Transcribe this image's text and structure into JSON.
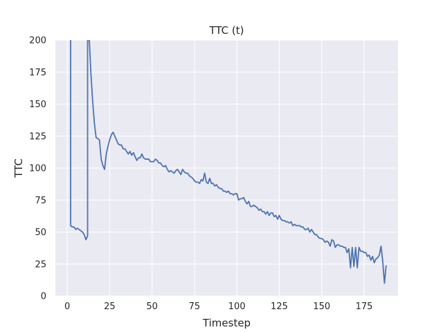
{
  "chart_data": {
    "type": "line",
    "title": "TTC (t)",
    "xlabel": "Timestep",
    "ylabel": "TTC",
    "xlim": [
      -7,
      195
    ],
    "ylim": [
      0,
      200
    ],
    "xticks": [
      0,
      25,
      50,
      75,
      100,
      125,
      150,
      175
    ],
    "yticks": [
      0,
      25,
      50,
      75,
      100,
      125,
      150,
      175,
      200
    ],
    "grid": true,
    "colors": {
      "background": "#eaeaf2",
      "grid": "#ffffff",
      "line": "#4c72b0"
    },
    "series": [
      {
        "x": [
          2,
          2,
          3,
          4,
          5,
          6,
          7,
          8,
          9,
          10,
          11,
          12,
          12,
          13,
          14,
          15,
          16,
          17,
          18,
          19,
          20,
          21,
          22,
          23,
          24,
          25,
          26,
          27,
          28,
          29,
          30,
          31,
          32,
          33,
          34,
          35,
          36,
          37,
          38,
          39,
          40,
          41,
          42,
          43,
          44,
          45,
          46,
          47,
          48,
          49,
          50,
          51,
          52,
          53,
          54,
          55,
          56,
          57,
          58,
          59,
          60,
          61,
          62,
          63,
          64,
          65,
          66,
          67,
          68,
          69,
          70,
          71,
          72,
          73,
          74,
          75,
          76,
          77,
          78,
          79,
          80,
          81,
          82,
          83,
          84,
          85,
          86,
          87,
          88,
          89,
          90,
          91,
          92,
          93,
          94,
          95,
          96,
          97,
          98,
          99,
          100,
          101,
          102,
          103,
          104,
          105,
          106,
          107,
          108,
          109,
          110,
          111,
          112,
          113,
          114,
          115,
          116,
          117,
          118,
          119,
          120,
          121,
          122,
          123,
          124,
          125,
          126,
          127,
          128,
          129,
          130,
          131,
          132,
          133,
          134,
          135,
          136,
          137,
          138,
          139,
          140,
          141,
          142,
          143,
          144,
          145,
          146,
          147,
          148,
          149,
          150,
          151,
          152,
          153,
          154,
          155,
          156,
          157,
          158,
          159,
          160,
          161,
          162,
          163,
          164,
          165,
          166,
          167,
          168,
          169,
          170,
          171,
          172,
          173,
          174,
          175,
          176,
          177,
          178,
          179,
          180,
          181,
          182,
          183,
          184,
          185,
          186,
          187,
          188
        ],
        "y": [
          200,
          55,
          54,
          54,
          52,
          53,
          52,
          51,
          50,
          48,
          44,
          47,
          200,
          200,
          173,
          152,
          135,
          124,
          123,
          122,
          107,
          102,
          99,
          111,
          117,
          122,
          126,
          128,
          125,
          122,
          119,
          118,
          118,
          115,
          115,
          113,
          111,
          113,
          110,
          112,
          109,
          106,
          108,
          108,
          111,
          108,
          107,
          107,
          107,
          105,
          105,
          105,
          107,
          106,
          104,
          104,
          102,
          101,
          102,
          99,
          97,
          98,
          97,
          96,
          98,
          99,
          97,
          95,
          99,
          97,
          96,
          96,
          94,
          93,
          92,
          90,
          89,
          89,
          88,
          91,
          90,
          96,
          89,
          88,
          92,
          88,
          88,
          86,
          87,
          85,
          84,
          84,
          82,
          82,
          81,
          82,
          80,
          80,
          79,
          80,
          80,
          75,
          76,
          76,
          77,
          74,
          72,
          74,
          70,
          70,
          71,
          70,
          69,
          67,
          68,
          66,
          66,
          64,
          66,
          63,
          65,
          65,
          62,
          63,
          60,
          63,
          60,
          59,
          59,
          58,
          58,
          57,
          58,
          55,
          56,
          55,
          55,
          55,
          54,
          54,
          52,
          52,
          53,
          50,
          52,
          50,
          48,
          48,
          46,
          45,
          45,
          44,
          42,
          43,
          42,
          39,
          44,
          43,
          38,
          40,
          40,
          39,
          39,
          38,
          38,
          34,
          37,
          22,
          38,
          23,
          38,
          22,
          38,
          35,
          35,
          34,
          34,
          31,
          32,
          28,
          31,
          26,
          29,
          30,
          32,
          39,
          27,
          10,
          24
        ]
      }
    ]
  }
}
